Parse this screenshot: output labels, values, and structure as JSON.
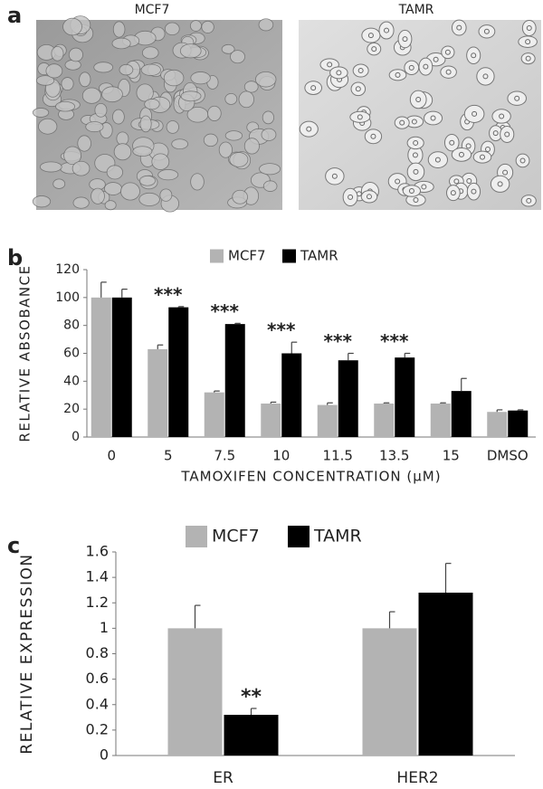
{
  "panel_labels": [
    "a",
    "b",
    "c"
  ],
  "images": [
    {
      "title": "MCF7"
    },
    {
      "title": "TAMR"
    }
  ],
  "chart_data": [
    {
      "type": "bar",
      "y_label": "RELATIVE ABSOBANCE",
      "x_label": "TAMOXIFEN CONCENTRATION (µM)",
      "categories": [
        "0",
        "5",
        "7.5",
        "10",
        "11.5",
        "13.5",
        "15",
        "DMSO"
      ],
      "series": [
        {
          "name": "MCF7",
          "color": "#b3b3b3",
          "values": [
            100,
            63,
            32,
            24,
            23,
            24,
            24,
            18
          ],
          "errors": [
            11,
            3,
            1,
            1,
            1.5,
            0.5,
            0.5,
            1.5
          ]
        },
        {
          "name": "TAMR",
          "color": "#000000",
          "values": [
            100,
            93,
            81,
            60,
            55,
            57,
            33,
            19
          ],
          "errors": [
            6,
            0.5,
            0.5,
            8,
            5,
            3,
            9,
            0.5
          ]
        }
      ],
      "annotations": [
        null,
        "***",
        "***",
        "***",
        "***",
        "***",
        null,
        null
      ],
      "ylim": [
        0,
        120
      ],
      "yticks": [
        0,
        20,
        40,
        60,
        80,
        100,
        120
      ]
    },
    {
      "type": "bar",
      "y_label": "RELATIVE EXPRESSION",
      "categories": [
        "ER",
        "HER2"
      ],
      "series": [
        {
          "name": "MCF7",
          "color": "#b3b3b3",
          "values": [
            1,
            1
          ],
          "errors": [
            0.18,
            0.13
          ]
        },
        {
          "name": "TAMR",
          "color": "#000000",
          "values": [
            0.32,
            1.28
          ],
          "errors": [
            0.05,
            0.23
          ]
        }
      ],
      "annotations": [
        null,
        null
      ],
      "annotations_tamr": [
        "**",
        null
      ],
      "ylim": [
        0,
        1.6
      ],
      "yticks": [
        0,
        0.2,
        0.4,
        0.6,
        0.8,
        1,
        1.2,
        1.4,
        1.6
      ]
    }
  ]
}
